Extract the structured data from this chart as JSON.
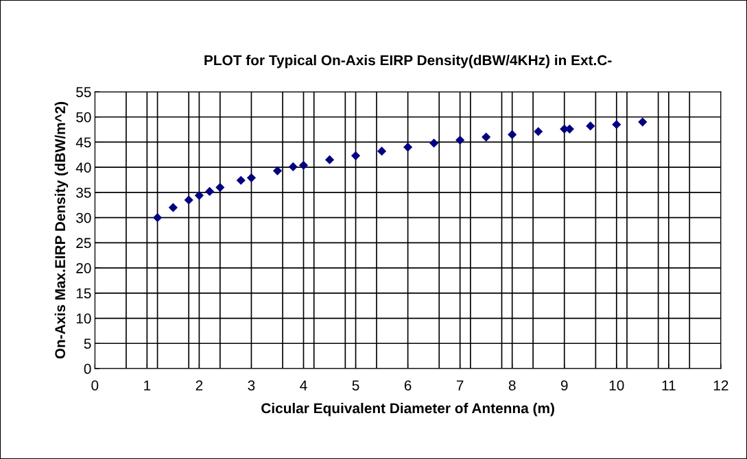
{
  "chart_data": {
    "type": "scatter",
    "title": "PLOT for Typical On-Axis EIRP Density(dBW/4KHz) in Ext.C-",
    "xlabel": "Cicular Equivalent Diameter of Antenna (m)",
    "ylabel": "On-Axis Max.EIRP Density (dBW/m^2)",
    "x": [
      1.2,
      1.5,
      1.8,
      2.0,
      2.2,
      2.4,
      2.8,
      3.0,
      3.5,
      3.8,
      4.0,
      4.5,
      5.0,
      5.5,
      6.0,
      6.5,
      7.0,
      7.5,
      8.0,
      8.5,
      9.0,
      9.1,
      9.5,
      10.0,
      10.5
    ],
    "series": [
      {
        "color": "#000080",
        "values": [
          30,
          32,
          33.5,
          34.4,
          35.2,
          36.0,
          37.4,
          37.9,
          39.3,
          40.1,
          40.4,
          41.5,
          42.3,
          43.2,
          44.0,
          44.8,
          45.4,
          46.0,
          46.5,
          47.1,
          47.6,
          47.6,
          48.2,
          48.5,
          49.0
        ]
      }
    ],
    "marker": "diamond",
    "xlim": [
      0,
      12
    ],
    "xticks": [
      0,
      {
        "value": 0.6,
        "label": null
      },
      1,
      {
        "value": 1.2,
        "label": null
      },
      {
        "value": 1.8,
        "label": null
      },
      2,
      {
        "value": 2.4,
        "label": null
      },
      3,
      {
        "value": 3.0000001,
        "label": null
      },
      {
        "value": 3.6,
        "label": null
      },
      4,
      {
        "value": 4.2,
        "label": null
      },
      {
        "value": 4.8,
        "label": null
      },
      5,
      {
        "value": 5.4,
        "label": null
      },
      6,
      {
        "value": 6.0000001,
        "label": null
      },
      {
        "value": 6.6,
        "label": null
      },
      7,
      {
        "value": 7.2,
        "label": null
      },
      {
        "value": 7.8,
        "label": null
      },
      8,
      {
        "value": 8.4,
        "label": null
      },
      9,
      {
        "value": 9.0000001,
        "label": null
      },
      {
        "value": 9.6,
        "label": null
      },
      10,
      {
        "value": 10.2,
        "label": null
      },
      {
        "value": 10.8,
        "label": null
      },
      11,
      {
        "value": 11.4,
        "label": null
      },
      12
    ],
    "ylim": [
      0,
      55
    ],
    "yticks": [
      0,
      5,
      10,
      15,
      20,
      25,
      30,
      35,
      40,
      45,
      50,
      55
    ],
    "grid": true
  }
}
